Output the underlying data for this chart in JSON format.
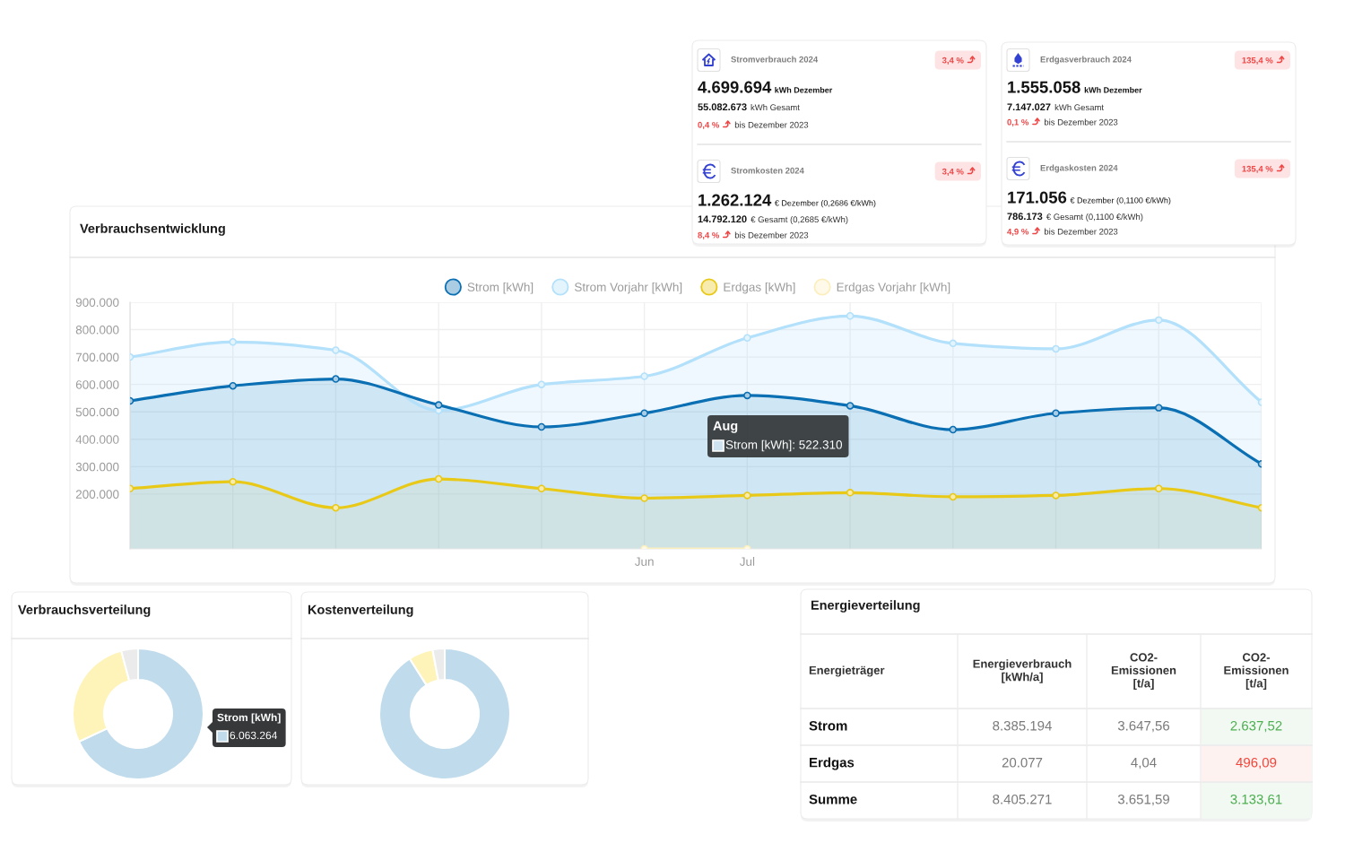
{
  "chart_data": [
    {
      "type": "other",
      "title": "Stromverbrauch 2024",
      "annotations": [
        "3,4 %",
        "4.699.694",
        "kWh Dezember",
        "55.082.673",
        "kWh Gesamt",
        "0,4 %",
        "bis Dezember 2023"
      ]
    },
    {
      "type": "other",
      "title": "Erdgasverbrauch 2024",
      "annotations": [
        "135,4 %",
        "1.555.058",
        "kWh Dezember",
        "7.147.027",
        "kWh Gesamt",
        "0,1 %",
        "bis Dezember 2023"
      ]
    },
    {
      "type": "other",
      "title": "Stromkosten 2024",
      "annotations": [
        "3,4 %",
        "1.262.124",
        "€ Dezember (0,2686 €/kWh)",
        "14.792.120",
        "€ Gesamt (0,2685 €/kWh)",
        "8,4 %",
        "bis Dezember 2023"
      ]
    },
    {
      "type": "other",
      "title": "Erdgaskosten 2024",
      "annotations": [
        "135,4 %",
        "171.056",
        "€ Dezember (0,1100 €/kWh)",
        "786.173",
        "€ Gesamt (0,1100 €/kWh)",
        "4,9 %",
        "bis Dezember 2023"
      ]
    },
    {
      "type": "area",
      "title": "Verbrauchsentwicklung",
      "categories": [
        null,
        null,
        null,
        null,
        null,
        "Jun",
        "Jul",
        null,
        null,
        null,
        null,
        null
      ],
      "series": [
        {
          "name": "Strom [kWh]",
          "color": "#0b6fb3",
          "values": [
            540000,
            595000,
            620000,
            525000,
            445000,
            495000,
            560000,
            522310,
            435000,
            495000,
            515000,
            310000
          ]
        },
        {
          "name": "Strom Vorjahr [kWh]",
          "color": "#b3e0fa",
          "values": [
            700000,
            755000,
            725000,
            505000,
            600000,
            630000,
            770000,
            850000,
            750000,
            730000,
            835000,
            535000
          ]
        },
        {
          "name": "Erdgas [kWh]",
          "color": "#e9c918",
          "values": [
            220000,
            245000,
            150000,
            255000,
            220000,
            185000,
            195000,
            205000,
            190000,
            195000,
            220000,
            150000
          ]
        },
        {
          "name": "Erdgas Vorjahr [kWh]",
          "type": "line",
          "color": "#fbefbf",
          "values": [
            null,
            null,
            null,
            null,
            null,
            0,
            0,
            null,
            null,
            null,
            null,
            null
          ]
        }
      ],
      "ylim": [
        0,
        900000
      ],
      "yticks": [
        {
          "value": 200000,
          "label": "200.000"
        },
        {
          "value": 300000,
          "label": "300.000"
        },
        {
          "value": 400000,
          "label": "400.000"
        },
        {
          "value": 500000,
          "label": "500.000"
        },
        {
          "value": 600000,
          "label": "600.000"
        },
        {
          "value": 700000,
          "label": "700.000"
        },
        {
          "value": 800000,
          "label": "800.000"
        },
        {
          "value": 900000,
          "label": "900.000"
        }
      ],
      "grid": true,
      "legend": "top",
      "marker": "circle",
      "line_style": "solid",
      "annotations": [
        "Aug",
        "Strom [kWh]: 522.310"
      ]
    },
    {
      "type": "donut",
      "title": "Verbrauchsverteilung",
      "categories": [
        "Strom [kWh]",
        null,
        null
      ],
      "values": [
        6063264,
        2480000,
        370000
      ],
      "colors": [
        "#bfdbec",
        "#fef3b9",
        "#ebebeb"
      ],
      "value_labels": [
        "6.063.264",
        null,
        null
      ]
    },
    {
      "type": "donut",
      "title": "Kostenverteilung",
      "categories": [
        null,
        null,
        null
      ],
      "values": [
        91,
        6,
        3
      ],
      "colors": [
        "#bfdbec",
        "#fef3b9",
        "#ebebeb"
      ]
    },
    {
      "type": "other",
      "title": "Energieverteilung",
      "annotations": [
        "Energieträger",
        "Energieverbrauch\n[kWh/a]",
        "CO2-\nEmissionen\n[t/a]",
        "CO2-\nEmissionen\n[t/a]",
        "Strom",
        "8.385.194",
        "3.647,56",
        "2.637,52",
        "Erdgas",
        "20.077",
        "4,04",
        "496,09",
        "Summe",
        "8.405.271",
        "3.651,59",
        "3.133,61"
      ],
      "colors": [
        null,
        null,
        null,
        null,
        null,
        null,
        null,
        "#4caf50",
        null,
        null,
        null,
        "#f44336",
        null,
        null,
        null,
        "#4caf50"
      ]
    }
  ]
}
